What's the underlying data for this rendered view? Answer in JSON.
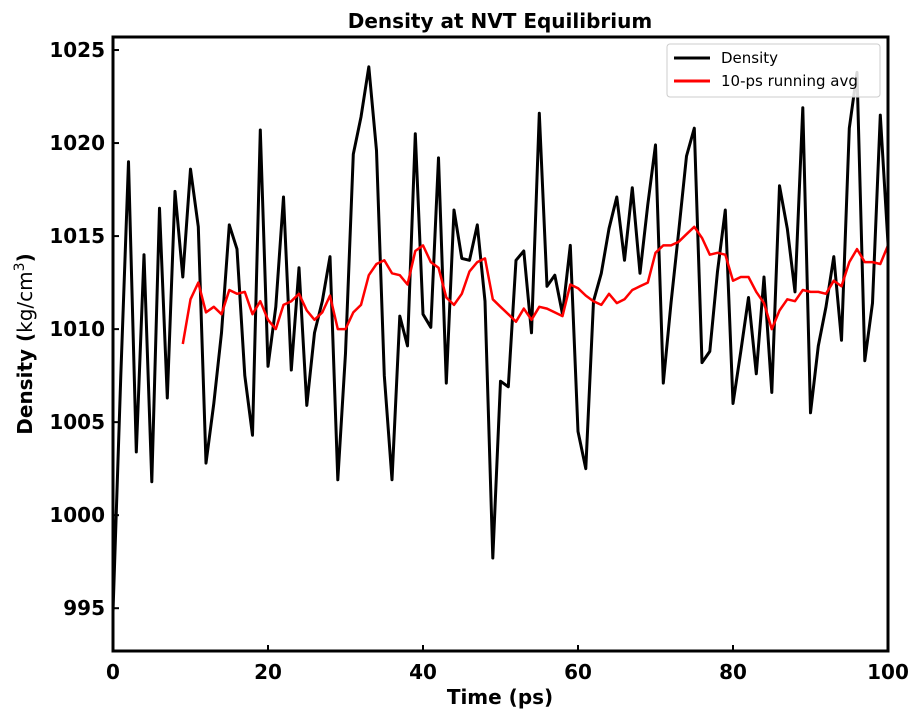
{
  "chart_data": {
    "type": "line",
    "title": "Density at NVT Equilibrium",
    "xlabel": "Time (ps)",
    "ylabel": {
      "prefix": "Density (",
      "unit": "kg/cm",
      "sup": "3",
      "suffix": ")"
    },
    "xlim": [
      0,
      100
    ],
    "ylim": [
      992.7,
      1025.7
    ],
    "xticks": [
      0,
      20,
      40,
      60,
      80,
      100
    ],
    "yticks": [
      995,
      1000,
      1005,
      1010,
      1015,
      1020,
      1025
    ],
    "grid": false,
    "legend_position": "top-right",
    "series": [
      {
        "name": "Density",
        "color": "#000000",
        "x": [
          0,
          1,
          2,
          3,
          4,
          5,
          6,
          7,
          8,
          9,
          10,
          11,
          12,
          13,
          14,
          15,
          16,
          17,
          18,
          19,
          20,
          21,
          22,
          23,
          24,
          25,
          26,
          27,
          28,
          29,
          30,
          31,
          32,
          33,
          34,
          35,
          36,
          37,
          38,
          39,
          40,
          41,
          42,
          43,
          44,
          45,
          46,
          47,
          48,
          49,
          50,
          51,
          52,
          53,
          54,
          55,
          56,
          57,
          58,
          59,
          60,
          61,
          62,
          63,
          64,
          65,
          66,
          67,
          68,
          69,
          70,
          71,
          72,
          73,
          74,
          75,
          76,
          77,
          78,
          79,
          80,
          81,
          82,
          83,
          84,
          85,
          86,
          87,
          88,
          89,
          90,
          91,
          92,
          93,
          94,
          95,
          96,
          97,
          98,
          99,
          100
        ],
        "y": [
          994.8,
          1007.5,
          1019.0,
          1003.4,
          1014.0,
          1001.8,
          1016.5,
          1006.3,
          1017.4,
          1012.8,
          1018.6,
          1015.5,
          1002.8,
          1006.0,
          1009.8,
          1015.6,
          1014.3,
          1007.5,
          1004.3,
          1020.7,
          1008.0,
          1011.2,
          1017.1,
          1007.8,
          1013.3,
          1005.9,
          1009.8,
          1011.5,
          1013.9,
          1001.9,
          1008.7,
          1019.4,
          1021.4,
          1024.1,
          1019.6,
          1007.5,
          1001.9,
          1010.7,
          1009.1,
          1020.5,
          1010.8,
          1010.1,
          1019.2,
          1007.1,
          1016.4,
          1013.8,
          1013.7,
          1015.6,
          1011.5,
          997.7,
          1007.2,
          1006.9,
          1013.7,
          1014.2,
          1009.8,
          1021.6,
          1012.3,
          1012.9,
          1010.8,
          1014.5,
          1004.5,
          1002.5,
          1011.5,
          1013.0,
          1015.4,
          1017.1,
          1013.7,
          1017.6,
          1013.0,
          1016.7,
          1019.9,
          1007.1,
          1011.4,
          1015.3,
          1019.3,
          1020.8,
          1008.2,
          1008.8,
          1013.1,
          1016.4,
          1006.0,
          1008.8,
          1011.7,
          1007.6,
          1012.8,
          1006.6,
          1017.7,
          1015.4,
          1012.0,
          1021.9,
          1005.5,
          1009.1,
          1011.2,
          1013.9,
          1009.4,
          1020.8,
          1023.8,
          1008.3,
          1011.4,
          1021.5,
          1014.6
        ]
      },
      {
        "name": "10-ps running avg",
        "color": "#ff0000",
        "x": [
          9,
          10,
          11,
          12,
          13,
          14,
          15,
          16,
          17,
          18,
          19,
          20,
          21,
          22,
          23,
          24,
          25,
          26,
          27,
          28,
          29,
          30,
          31,
          32,
          33,
          34,
          35,
          36,
          37,
          38,
          39,
          40,
          41,
          42,
          43,
          44,
          45,
          46,
          47,
          48,
          49,
          50,
          51,
          52,
          53,
          54,
          55,
          56,
          57,
          58,
          59,
          60,
          61,
          62,
          63,
          64,
          65,
          66,
          67,
          68,
          69,
          70,
          71,
          72,
          73,
          74,
          75,
          76,
          77,
          78,
          79,
          80,
          81,
          82,
          83,
          84,
          85,
          86,
          87,
          88,
          89,
          90,
          91,
          92,
          93,
          94,
          95,
          96,
          97,
          98,
          99,
          100
        ],
        "y": [
          1009.2,
          1011.6,
          1012.5,
          1010.9,
          1011.2,
          1010.8,
          1012.1,
          1011.9,
          1012.0,
          1010.8,
          1011.5,
          1010.5,
          1010.0,
          1011.3,
          1011.5,
          1011.9,
          1011.0,
          1010.5,
          1010.9,
          1011.8,
          1010.0,
          1010.0,
          1010.9,
          1011.3,
          1012.9,
          1013.5,
          1013.7,
          1013.0,
          1012.9,
          1012.4,
          1014.2,
          1014.5,
          1013.6,
          1013.3,
          1011.7,
          1011.3,
          1011.9,
          1013.1,
          1013.6,
          1013.8,
          1011.6,
          1011.2,
          1010.8,
          1010.4,
          1011.1,
          1010.5,
          1011.2,
          1011.1,
          1010.9,
          1010.7,
          1012.4,
          1012.2,
          1011.8,
          1011.5,
          1011.3,
          1011.9,
          1011.4,
          1011.6,
          1012.1,
          1012.3,
          1012.5,
          1014.1,
          1014.5,
          1014.5,
          1014.7,
          1015.1,
          1015.5,
          1014.9,
          1014.0,
          1014.1,
          1014.0,
          1012.6,
          1012.8,
          1012.8,
          1012.0,
          1011.4,
          1010.0,
          1011.0,
          1011.6,
          1011.5,
          1012.1,
          1012.0,
          1012.0,
          1011.9,
          1012.6,
          1012.3,
          1013.6,
          1014.3,
          1013.6,
          1013.6,
          1013.5,
          1014.5
        ]
      }
    ]
  }
}
